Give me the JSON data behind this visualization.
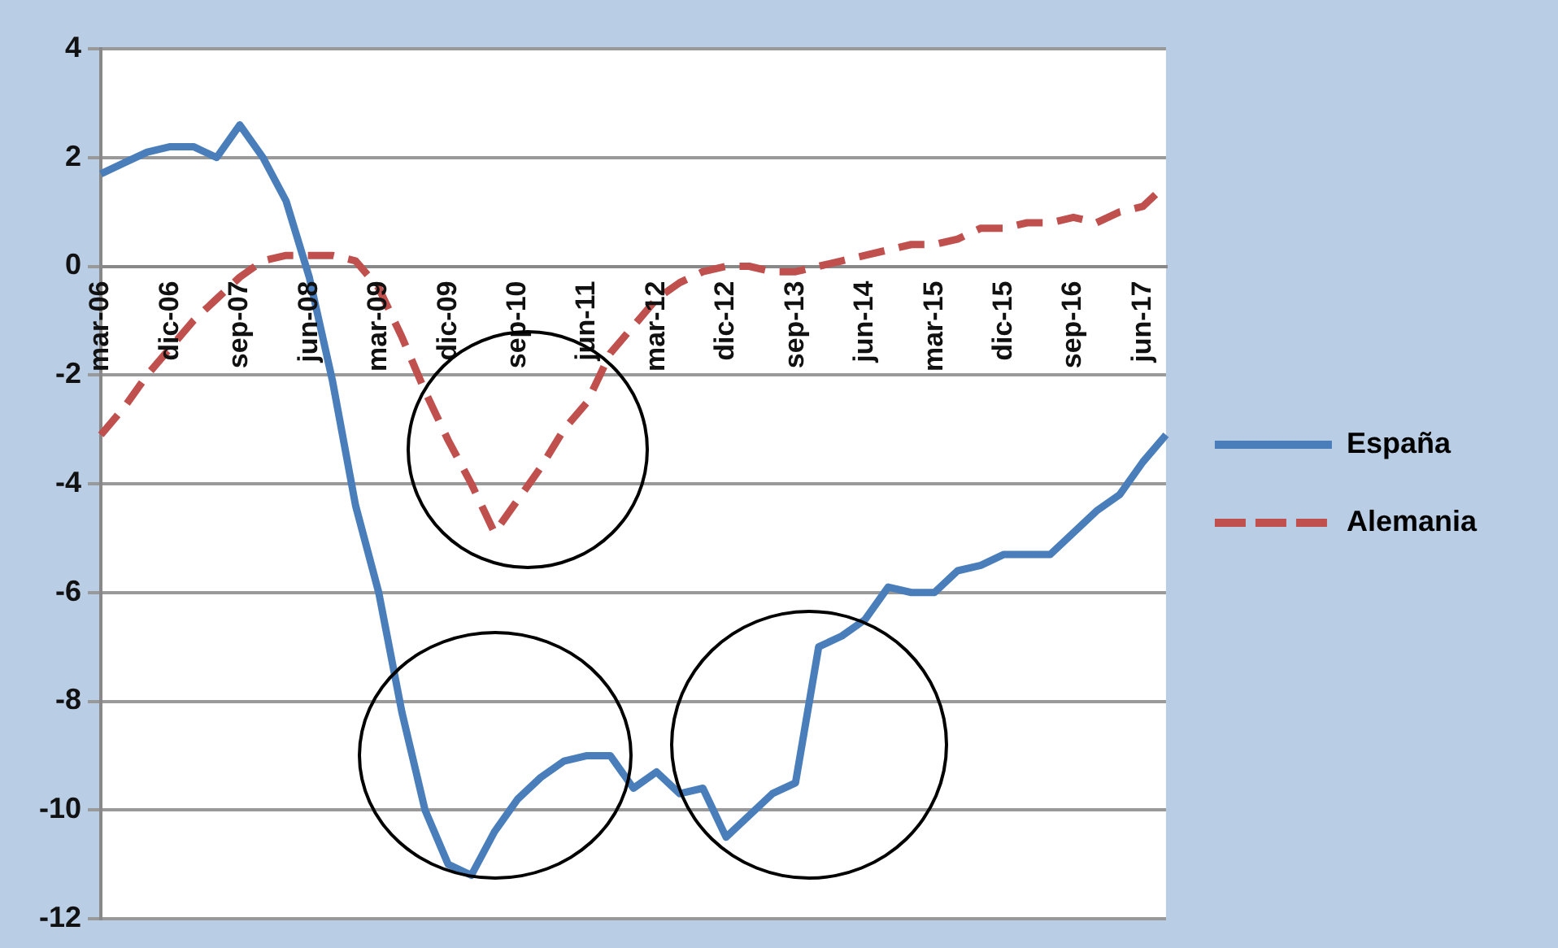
{
  "chart_data": {
    "type": "line",
    "categories": [
      "mar-06",
      null,
      null,
      "dic-06",
      null,
      null,
      "sep-07",
      null,
      null,
      "jun-08",
      null,
      null,
      "mar-09",
      null,
      null,
      "dic-09",
      null,
      null,
      "sep-10",
      null,
      null,
      "jun-11",
      null,
      null,
      "mar-12",
      null,
      null,
      "dic-12",
      null,
      null,
      "sep-13",
      null,
      null,
      "jun-14",
      null,
      null,
      "mar-15",
      null,
      null,
      "dic-15",
      null,
      null,
      "sep-16",
      null,
      null,
      "jun-17",
      null
    ],
    "series": [
      {
        "name": "España",
        "color": "#4a7ebb",
        "line_style": "solid",
        "values": [
          1.7,
          1.9,
          2.1,
          2.2,
          2.2,
          2.0,
          2.6,
          2.0,
          1.2,
          -0.2,
          -2.1,
          -4.4,
          -6.0,
          -8.2,
          -10.0,
          -11.0,
          -11.2,
          -10.4,
          -9.8,
          -9.4,
          -9.1,
          -9.0,
          -9.0,
          -9.6,
          -9.3,
          -9.7,
          -9.6,
          -10.5,
          -10.1,
          -9.7,
          -9.5,
          -7.0,
          -6.8,
          -6.5,
          -5.9,
          -6.0,
          -6.0,
          -5.6,
          -5.5,
          -5.3,
          -5.3,
          -5.3,
          -4.9,
          -4.5,
          -4.2,
          -3.6,
          -3.1
        ]
      },
      {
        "name": "Alemania",
        "color": "#c0504d",
        "line_style": "dashed",
        "values": [
          -3.1,
          -2.6,
          -2.0,
          -1.5,
          -1.0,
          -0.6,
          -0.2,
          0.1,
          0.2,
          0.2,
          0.2,
          0.1,
          -0.4,
          -1.3,
          -2.3,
          -3.2,
          -4.0,
          -4.9,
          -4.3,
          -3.7,
          -3.0,
          -2.5,
          -1.6,
          -1.1,
          -0.6,
          -0.3,
          -0.1,
          0.0,
          0.0,
          -0.1,
          -0.1,
          0.0,
          0.1,
          0.2,
          0.3,
          0.4,
          0.4,
          0.5,
          0.7,
          0.7,
          0.8,
          0.8,
          0.9,
          0.8,
          1.0,
          1.1,
          1.5
        ]
      }
    ],
    "ylim": [
      -12,
      4
    ],
    "yticks": [
      -12,
      -10,
      -8,
      -6,
      -4,
      -2,
      0,
      2,
      4
    ],
    "grid": "y",
    "legend": "right",
    "marker": "none"
  }
}
